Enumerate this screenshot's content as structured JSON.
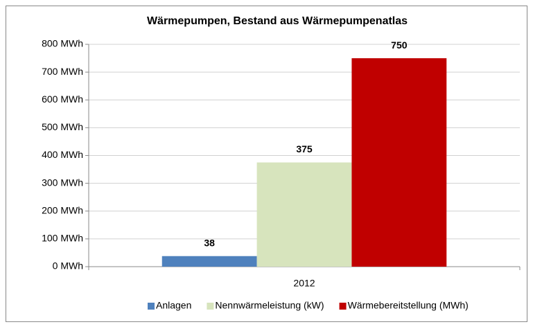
{
  "chart_data": {
    "type": "bar",
    "title": "Wärmepumpen, Bestand aus Wärmepumpenatlas",
    "categories": [
      "2012"
    ],
    "series": [
      {
        "name": "Anlagen",
        "color": "#4f81bd",
        "values": [
          38
        ]
      },
      {
        "name": "Nennwärmeleistung (kW)",
        "color": "#d7e4bd",
        "values": [
          375
        ]
      },
      {
        "name": "Wärmebereitstellung (MWh)",
        "color": "#c00000",
        "values": [
          750
        ]
      }
    ],
    "ylim": [
      0,
      800
    ],
    "yticks": [
      {
        "value": 0,
        "label": "0 MWh"
      },
      {
        "value": 100,
        "label": "100 MWh"
      },
      {
        "value": 200,
        "label": "200 MWh"
      },
      {
        "value": 300,
        "label": "300 MWh"
      },
      {
        "value": 400,
        "label": "400 MWh"
      },
      {
        "value": 500,
        "label": "500 MWh"
      },
      {
        "value": 600,
        "label": "600 MWh"
      },
      {
        "value": 700,
        "label": "700 MWh"
      },
      {
        "value": 800,
        "label": "800 MWh"
      }
    ],
    "grid": true,
    "legend": "bottom"
  }
}
